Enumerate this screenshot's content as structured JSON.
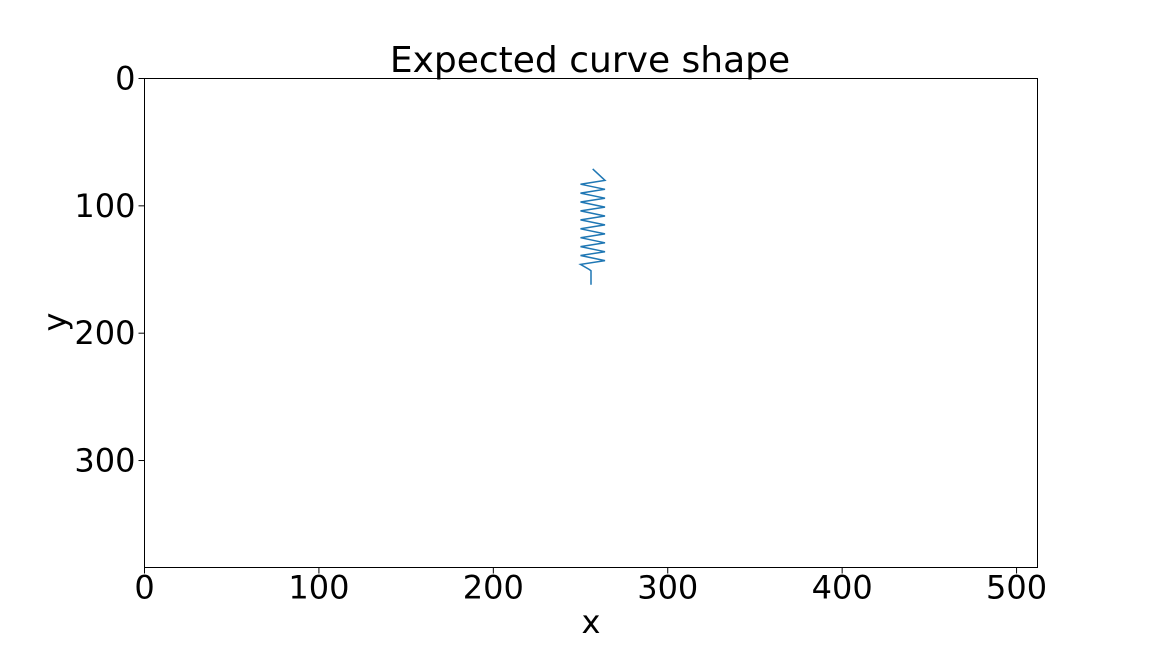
{
  "chart_data": {
    "type": "line",
    "title": "Expected curve shape",
    "xlabel": "x",
    "ylabel": "y",
    "xlim": [
      0,
      512
    ],
    "ylim": [
      384,
      0
    ],
    "y_inverted": true,
    "grid": false,
    "xticks": [
      0,
      100,
      200,
      300,
      400,
      500
    ],
    "yticks": [
      0,
      100,
      200,
      300
    ],
    "series": [
      {
        "color": "#1f77b4",
        "x": [
          256,
          256,
          255,
          250,
          264,
          250,
          264,
          250,
          264,
          250,
          264,
          250,
          264,
          250,
          264,
          250,
          264,
          250,
          264,
          250,
          264,
          250,
          264,
          257
        ],
        "y": [
          162,
          151,
          150,
          146,
          143,
          139,
          136,
          132,
          129,
          125,
          122,
          118,
          115,
          111,
          108,
          104,
          101,
          97,
          94,
          90,
          87,
          83,
          80,
          71
        ]
      }
    ]
  }
}
